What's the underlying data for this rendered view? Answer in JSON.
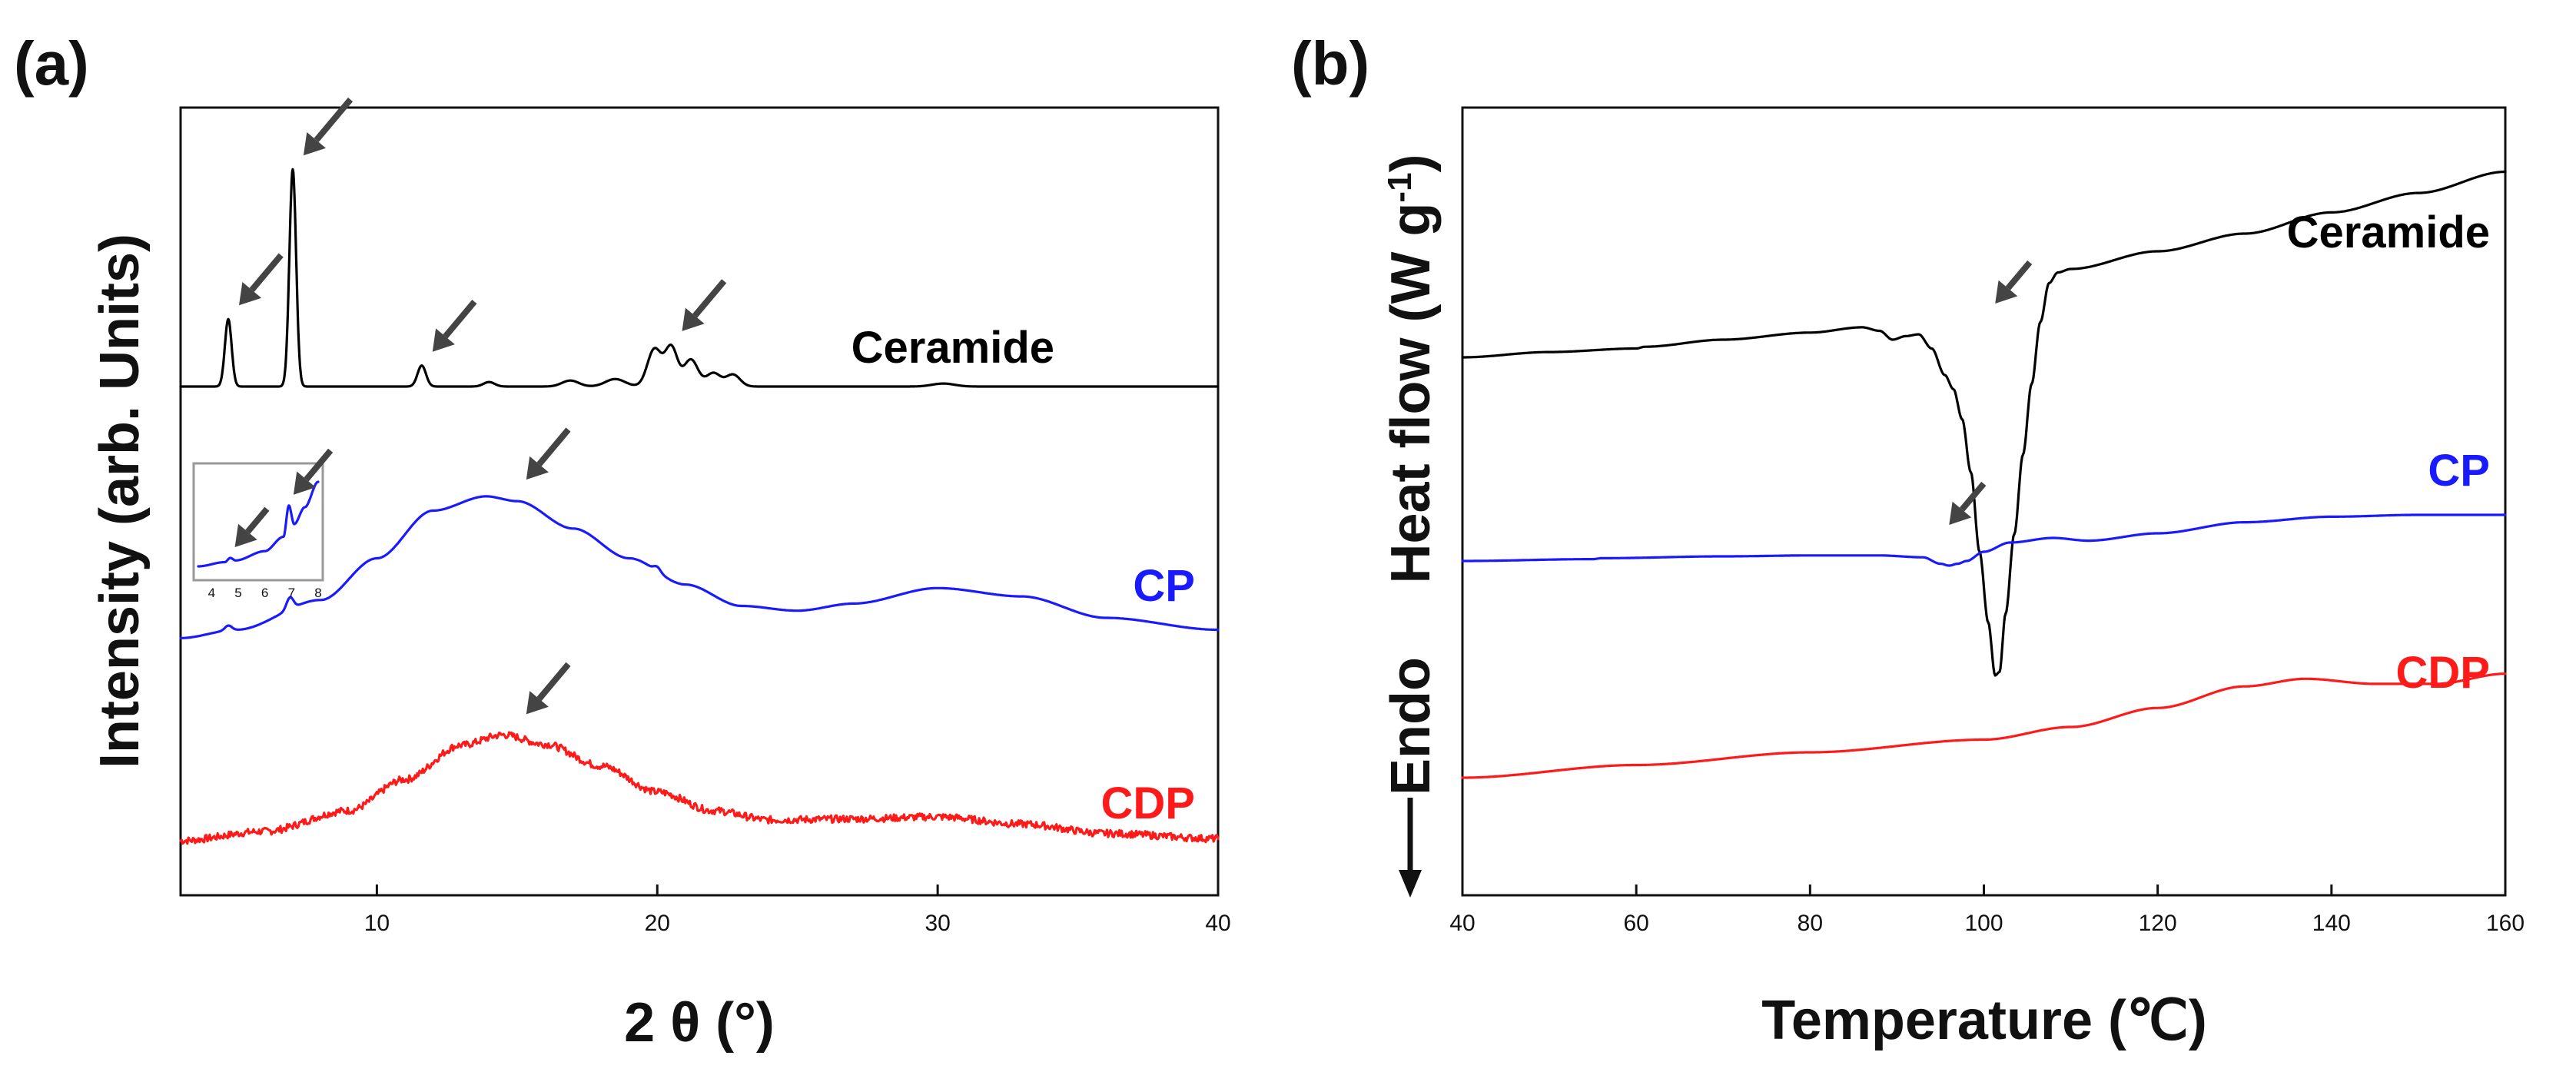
{
  "colors": {
    "ceramide": "#000000",
    "cp": "#1a1aff",
    "cdp": "#ff1a1a",
    "arrow": "#444444",
    "axis": "#111111"
  },
  "chart_data": [
    {
      "type": "line",
      "panel_label": "(a)",
      "title": "",
      "xlabel": "2 θ (°)",
      "ylabel": "Intensity (arb. Units)",
      "xlim": [
        3,
        40
      ],
      "x_ticks": [
        10,
        20,
        30,
        40
      ],
      "grid": false,
      "y_ticks_shown": false,
      "series": [
        {
          "name": "Ceramide",
          "label": "Ceramide",
          "peaks": [
            {
              "x": 4.7,
              "height": 0.45,
              "width": 0.12
            },
            {
              "x": 7.0,
              "height": 1.45,
              "width": 0.12
            },
            {
              "x": 11.6,
              "height": 0.14,
              "width": 0.15
            },
            {
              "x": 14.0,
              "height": 0.03,
              "width": 0.2
            },
            {
              "x": 16.9,
              "height": 0.04,
              "width": 0.3
            },
            {
              "x": 18.5,
              "height": 0.05,
              "width": 0.35
            },
            {
              "x": 19.9,
              "height": 0.25,
              "width": 0.25
            },
            {
              "x": 20.5,
              "height": 0.26,
              "width": 0.22
            },
            {
              "x": 21.2,
              "height": 0.18,
              "width": 0.25
            },
            {
              "x": 22.0,
              "height": 0.09,
              "width": 0.25
            },
            {
              "x": 22.7,
              "height": 0.08,
              "width": 0.25
            },
            {
              "x": 30.2,
              "height": 0.02,
              "width": 0.4
            }
          ],
          "arrows_at_x": [
            4.7,
            7.0,
            11.6,
            20.5
          ]
        },
        {
          "name": "CP",
          "label": "CP",
          "profile": [
            [
              3,
              0.03
            ],
            [
              5,
              0.1
            ],
            [
              8,
              0.35
            ],
            [
              10,
              0.7
            ],
            [
              12,
              1.1
            ],
            [
              13.9,
              1.22
            ],
            [
              15,
              1.18
            ],
            [
              17,
              0.95
            ],
            [
              19,
              0.7
            ],
            [
              21,
              0.48
            ],
            [
              23,
              0.3
            ],
            [
              25,
              0.26
            ],
            [
              27,
              0.32
            ],
            [
              30,
              0.45
            ],
            [
              33,
              0.38
            ],
            [
              36,
              0.2
            ],
            [
              40,
              0.1
            ]
          ],
          "small_peaks": [
            {
              "x": 4.7,
              "height": 0.04
            },
            {
              "x": 6.9,
              "height": 0.1
            },
            {
              "x": 20.0,
              "height": 0.04
            }
          ],
          "arrows_at_x": [
            15.0
          ]
        },
        {
          "name": "CDP",
          "label": "CDP",
          "profile": [
            [
              3,
              0.03
            ],
            [
              6,
              0.12
            ],
            [
              9,
              0.32
            ],
            [
              11,
              0.62
            ],
            [
              13,
              0.95
            ],
            [
              14.5,
              1.05
            ],
            [
              16,
              0.96
            ],
            [
              18,
              0.75
            ],
            [
              20,
              0.5
            ],
            [
              22,
              0.32
            ],
            [
              24,
              0.23
            ],
            [
              27,
              0.24
            ],
            [
              30,
              0.26
            ],
            [
              33,
              0.19
            ],
            [
              36,
              0.1
            ],
            [
              40,
              0.05
            ]
          ],
          "noise": true,
          "arrows_at_x": [
            15.0
          ]
        }
      ],
      "inset": {
        "x_ticks": [
          "4",
          "5",
          "6",
          "7",
          "8"
        ],
        "xlim": [
          3.5,
          8
        ],
        "profile": [
          [
            3.5,
            0.0
          ],
          [
            4.5,
            0.05
          ],
          [
            4.7,
            0.1
          ],
          [
            4.9,
            0.07
          ],
          [
            6.0,
            0.18
          ],
          [
            6.7,
            0.35
          ],
          [
            6.9,
            0.72
          ],
          [
            7.1,
            0.5
          ],
          [
            7.5,
            0.7
          ],
          [
            8.0,
            1.0
          ]
        ],
        "arrows_at_x": [
          4.7,
          6.9
        ]
      }
    },
    {
      "type": "line",
      "panel_label": "(b)",
      "title": "",
      "xlabel": "Temperature (℃)",
      "ylabel": "Heat flow (W g",
      "ylabel_sup": "-1",
      "ylabel_end": ")",
      "direction_label": "Endo",
      "xlim": [
        40,
        160
      ],
      "x_ticks": [
        40,
        60,
        80,
        100,
        120,
        140,
        160
      ],
      "grid": false,
      "y_ticks_shown": false,
      "series": [
        {
          "name": "Ceramide",
          "label": "Ceramide",
          "x": [
            40,
            50,
            60,
            61,
            70,
            80,
            86,
            88,
            89.5,
            91,
            92.5,
            94,
            95.5,
            96.5,
            97.5,
            98.5,
            99.5,
            100.5,
            101.3,
            101.8,
            102.5,
            103.5,
            104.5,
            105.5,
            106.5,
            107.5,
            108.5,
            110,
            120,
            130,
            140,
            150,
            160
          ],
          "y": [
            0.0,
            0.03,
            0.05,
            0.06,
            0.1,
            0.14,
            0.17,
            0.15,
            0.1,
            0.12,
            0.13,
            0.05,
            -0.1,
            -0.18,
            -0.35,
            -0.65,
            -1.1,
            -1.5,
            -1.8,
            -1.78,
            -1.45,
            -1.0,
            -0.55,
            -0.15,
            0.2,
            0.42,
            0.48,
            0.5,
            0.6,
            0.7,
            0.82,
            0.93,
            1.05
          ],
          "arrows_at_x": [
            101.3
          ]
        },
        {
          "name": "CP",
          "label": "CP",
          "x": [
            40,
            55,
            56,
            70,
            80,
            88,
            93,
            95,
            96,
            97,
            98,
            100,
            103,
            108,
            112,
            120,
            130,
            140,
            150,
            160
          ],
          "y": [
            0.0,
            0.02,
            0.03,
            0.05,
            0.06,
            0.06,
            0.04,
            -0.03,
            -0.05,
            -0.03,
            0.0,
            0.1,
            0.2,
            0.25,
            0.22,
            0.3,
            0.42,
            0.48,
            0.5,
            0.5
          ],
          "arrows_at_x": [
            96.0
          ]
        },
        {
          "name": "CDP",
          "label": "CDP",
          "x": [
            40,
            60,
            80,
            100,
            110,
            120,
            130,
            137,
            145,
            152,
            160
          ],
          "y": [
            0.0,
            0.1,
            0.2,
            0.3,
            0.4,
            0.55,
            0.72,
            0.78,
            0.74,
            0.74,
            0.82
          ],
          "arrows_at_x": []
        }
      ]
    }
  ]
}
